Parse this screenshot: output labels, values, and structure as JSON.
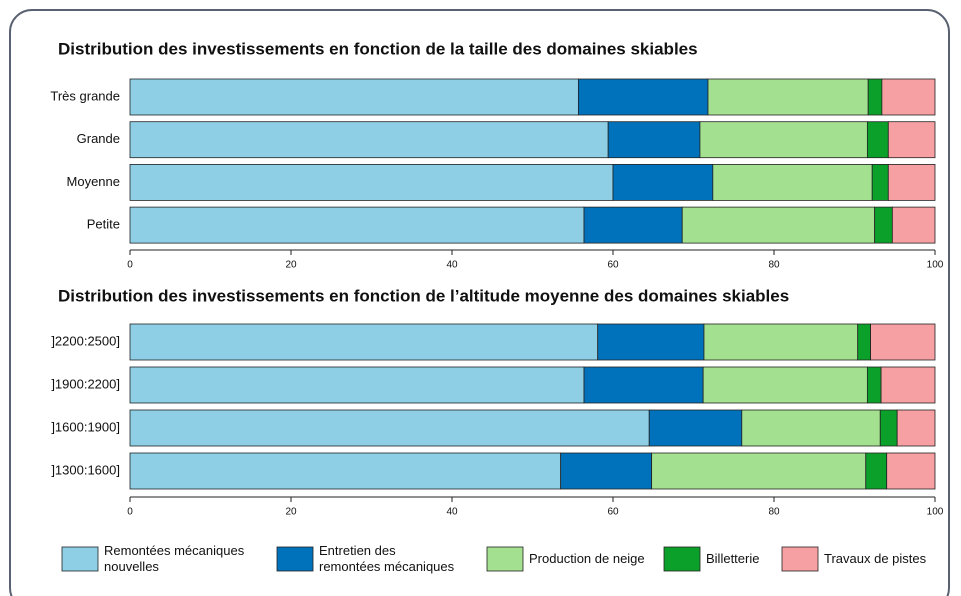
{
  "chart_data": [
    {
      "type": "bar",
      "orientation": "horizontal",
      "stacked": true,
      "title": "Distribution des investissements en fonction de la taille des domaines skiables",
      "categories": [
        "Très grande",
        "Grande",
        "Moyenne",
        "Petite"
      ],
      "series": [
        {
          "values": [
            55.7,
            59.4,
            60.0,
            56.4
          ]
        },
        {
          "values": [
            16.1,
            11.4,
            12.4,
            12.2
          ]
        },
        {
          "values": [
            19.9,
            20.8,
            19.8,
            23.9
          ]
        },
        {
          "values": [
            1.7,
            2.6,
            2.0,
            2.2
          ]
        },
        {
          "values": [
            6.6,
            5.8,
            5.8,
            5.3
          ]
        }
      ],
      "xlim": [
        0,
        100
      ],
      "xticks": [
        0,
        20,
        40,
        60,
        80,
        100
      ]
    },
    {
      "type": "bar",
      "orientation": "horizontal",
      "stacked": true,
      "title": "Distribution des investissements en fonction de l’altitude moyenne des domaines skiables",
      "categories": [
        "]2200:2500]",
        "]1900:2200]",
        "]1600:1900]",
        "]1300:1600]"
      ],
      "series": [
        {
          "values": [
            58.1,
            56.4,
            64.5,
            53.5
          ]
        },
        {
          "values": [
            13.2,
            14.8,
            11.5,
            11.3
          ]
        },
        {
          "values": [
            19.1,
            20.4,
            17.2,
            26.6
          ]
        },
        {
          "values": [
            1.6,
            1.7,
            2.1,
            2.6
          ]
        },
        {
          "values": [
            8.0,
            6.7,
            4.7,
            6.0
          ]
        }
      ],
      "xlim": [
        0,
        100
      ],
      "xticks": [
        0,
        20,
        40,
        60,
        80,
        100
      ]
    }
  ],
  "legend": [
    {
      "name": "Remontées mécaniques nouvelles",
      "color": "#8ecfe6"
    },
    {
      "name": "Entretien des remontées mécaniques",
      "color": "#0072bc"
    },
    {
      "name": "Production de neige",
      "color": "#a3e08f"
    },
    {
      "name": "Billetterie",
      "color": "#0aa02a"
    },
    {
      "name": "Travaux de pistes",
      "color": "#f7a0a3"
    }
  ]
}
